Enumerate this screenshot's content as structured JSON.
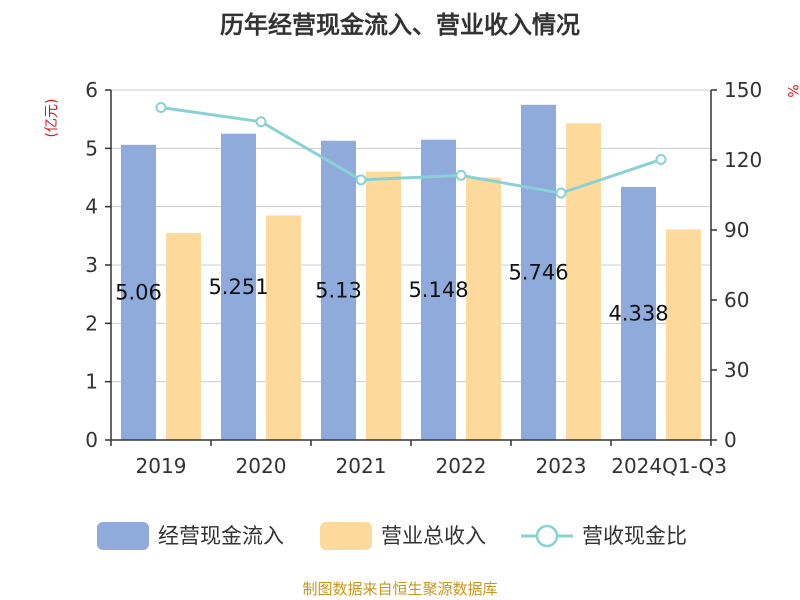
{
  "chart_data": {
    "type": "bar",
    "title": "历年经营现金流入、营业收入情况",
    "categories": [
      "2019",
      "2020",
      "2021",
      "2022",
      "2023",
      "2024Q1-Q3"
    ],
    "series": [
      {
        "name": "经营现金流入",
        "kind": "bar",
        "axis": "left",
        "color": "#8eabdb",
        "values": [
          5.06,
          5.251,
          5.13,
          5.148,
          5.746,
          4.338
        ],
        "labels": [
          "5.06",
          "5.251",
          "5.13",
          "5.148",
          "5.746",
          "4.338"
        ]
      },
      {
        "name": "营业总收入",
        "kind": "bar",
        "axis": "left",
        "color": "#fdd99b",
        "values": [
          3.55,
          3.85,
          4.6,
          4.5,
          5.43,
          3.61
        ]
      },
      {
        "name": "营收现金比",
        "kind": "line",
        "axis": "right",
        "color": "#88d2d6",
        "values": [
          142.5,
          136.4,
          111.5,
          113.4,
          105.8,
          120.2
        ]
      }
    ],
    "left_axis": {
      "unit": "(亿元)",
      "ylim": [
        0,
        6
      ],
      "ticks": [
        "0",
        "1",
        "2",
        "3",
        "4",
        "5",
        "6"
      ]
    },
    "right_axis": {
      "unit": "%",
      "ylim": [
        0,
        150
      ],
      "ticks": [
        "0",
        "30",
        "60",
        "90",
        "120",
        "150"
      ]
    },
    "grid": true,
    "legend": "bottom",
    "source": "制图数据来自恒生聚源数据库"
  }
}
